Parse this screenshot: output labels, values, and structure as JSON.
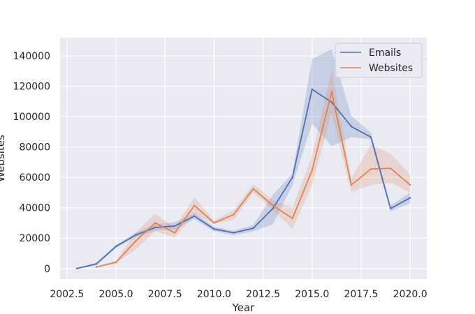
{
  "chart_data": {
    "type": "line",
    "title": "",
    "xlabel": "Year",
    "ylabel": "Websites",
    "xlim": [
      2002.15,
      2020.85
    ],
    "ylim": [
      -7000,
      152000
    ],
    "x_ticks": [
      2002.5,
      2005.0,
      2007.5,
      2010.0,
      2012.5,
      2015.0,
      2017.5,
      2020.0
    ],
    "x_tick_labels": [
      "2002.5",
      "2005.0",
      "2007.5",
      "2010.0",
      "2012.5",
      "2015.0",
      "2017.5",
      "2020.0"
    ],
    "y_ticks": [
      0,
      20000,
      40000,
      60000,
      80000,
      100000,
      120000,
      140000
    ],
    "y_tick_labels": [
      "0",
      "20000",
      "40000",
      "60000",
      "80000",
      "100000",
      "120000",
      "140000"
    ],
    "grid": true,
    "legend_position": "top-right",
    "series": [
      {
        "name": "Emails",
        "color": "#4c72b0",
        "x": [
          2003,
          2004,
          2005,
          2006,
          2007,
          2008,
          2009,
          2010,
          2011,
          2012,
          2013,
          2014,
          2015,
          2016,
          2017,
          2018,
          2019,
          2020
        ],
        "values": [
          0,
          3000,
          14500,
          22000,
          27000,
          28000,
          34500,
          26000,
          23500,
          26500,
          39500,
          60000,
          118000,
          109500,
          93500,
          86500,
          39500,
          46500
        ],
        "ci_lower": [
          0,
          2000,
          13500,
          20500,
          25000,
          25500,
          32500,
          24500,
          22000,
          24500,
          29000,
          55000,
          95500,
          80500,
          86500,
          85000,
          37500,
          43000
        ],
        "ci_upper": [
          0,
          4000,
          15500,
          23500,
          29000,
          30500,
          36500,
          27500,
          25000,
          28500,
          48500,
          62500,
          138000,
          144500,
          100500,
          89500,
          41500,
          50000
        ]
      },
      {
        "name": "Websites",
        "color": "#dd8452",
        "x": [
          2004,
          2005,
          2006,
          2007,
          2008,
          2009,
          2010,
          2011,
          2012,
          2013,
          2014,
          2015,
          2016,
          2017,
          2018,
          2019,
          2020
        ],
        "values": [
          1000,
          4000,
          18000,
          30000,
          23500,
          41500,
          30000,
          35500,
          52500,
          41500,
          33000,
          64500,
          116500,
          55000,
          65500,
          66000,
          55000
        ],
        "ci_lower": [
          1000,
          3500,
          12500,
          24500,
          20500,
          35500,
          29500,
          32000,
          50000,
          38500,
          26000,
          55000,
          102000,
          50500,
          55000,
          56500,
          50000
        ],
        "ci_upper": [
          1000,
          5000,
          23500,
          36000,
          27000,
          47000,
          31500,
          38500,
          55500,
          45000,
          40000,
          74000,
          131000,
          59500,
          81500,
          75500,
          62000
        ]
      }
    ]
  }
}
